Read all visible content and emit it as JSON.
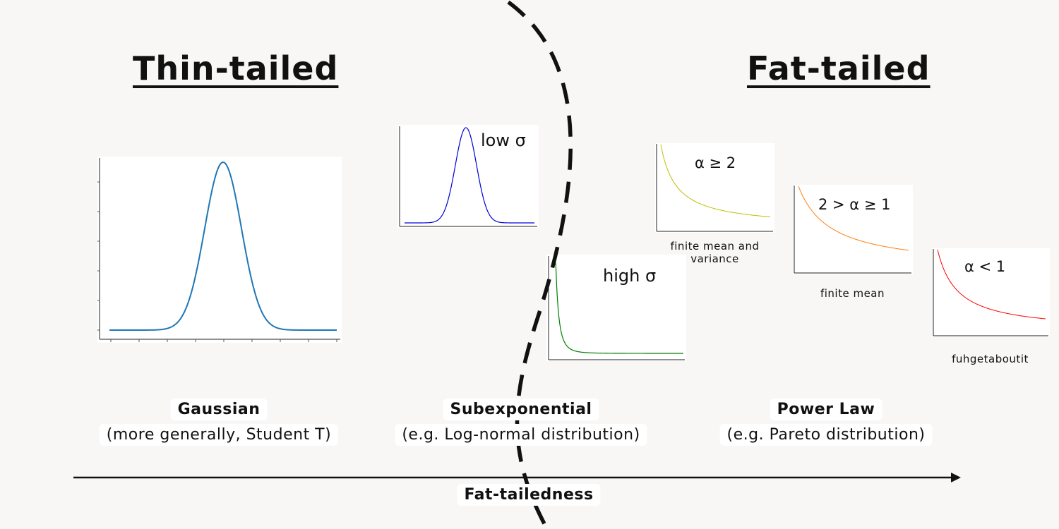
{
  "headings": {
    "thin": "Thin-tailed",
    "fat": "Fat-tailed"
  },
  "plots": {
    "gaussian": {
      "color": "#1f77b4"
    },
    "low_sigma": {
      "label": "low σ",
      "color": "#0000dd"
    },
    "high_sigma": {
      "label": "high σ",
      "color": "#008000"
    },
    "alpha_ge_2": {
      "label": "α ≥ 2",
      "caption": "finite mean and variance",
      "color": "#bfbf00"
    },
    "alpha_1_2": {
      "label": "2 > α ≥ 1",
      "caption": "finite mean",
      "color": "#ff7f0e"
    },
    "alpha_lt_1": {
      "label": "α < 1",
      "caption": "fuhgetaboutit",
      "color": "#ff0000"
    }
  },
  "categories": {
    "gaussian": {
      "title": "Gaussian",
      "subtitle": "(more generally, Student T)"
    },
    "subexponential": {
      "title": "Subexponential",
      "subtitle": "(e.g. Log-normal distribution)"
    },
    "power_law": {
      "title": "Power Law",
      "subtitle": "(e.g. Pareto distribution)"
    }
  },
  "axis": {
    "label": "Fat-tailedness"
  }
}
